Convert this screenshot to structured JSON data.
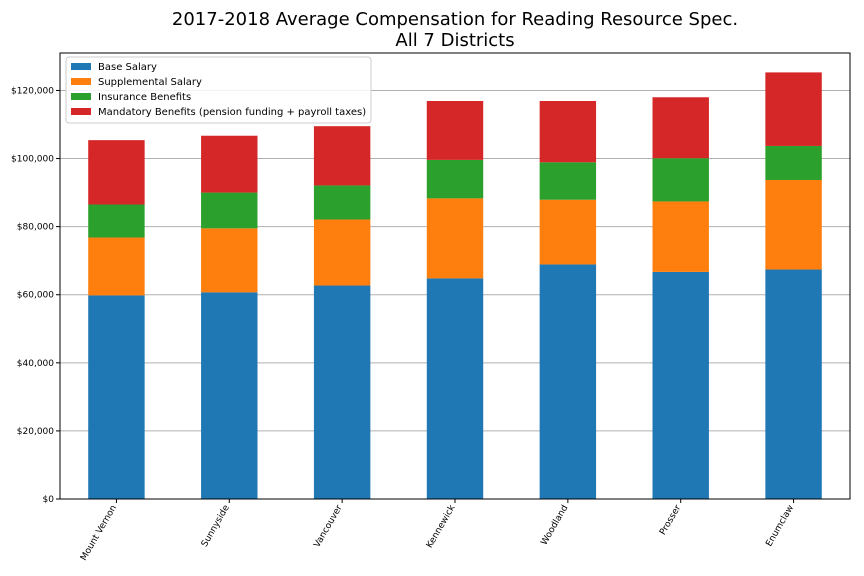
{
  "chart_data": {
    "type": "bar",
    "stacked": true,
    "title": "2017-2018 Average Compensation for Reading Resource Spec.",
    "subtitle": "All 7 Districts",
    "xlabel": "",
    "ylabel": "",
    "categories": [
      "Mount Vernon",
      "Sunnyside",
      "Vancouver",
      "Kennewick",
      "Woodland",
      "Prosser",
      "Enumclaw"
    ],
    "series": [
      {
        "name": "Base Salary",
        "color": "#1f77b4",
        "values": [
          59800,
          60700,
          62700,
          64800,
          68900,
          66700,
          67400
        ]
      },
      {
        "name": "Supplemental Salary",
        "color": "#ff7f0e",
        "values": [
          17000,
          18800,
          19400,
          23500,
          19000,
          20700,
          26300
        ]
      },
      {
        "name": "Insurance Benefits",
        "color": "#2ca02c",
        "values": [
          9700,
          10500,
          10000,
          11300,
          11000,
          12700,
          10000
        ]
      },
      {
        "name": "Mandatory Benefits (pension funding + payroll taxes)",
        "color": "#d62728",
        "values": [
          18900,
          16700,
          17400,
          17300,
          18000,
          17900,
          21600
        ]
      }
    ],
    "ylim": [
      0,
      131000
    ],
    "yticks": [
      0,
      20000,
      40000,
      60000,
      80000,
      100000,
      120000
    ],
    "ytick_labels": [
      "$0",
      "$20,000",
      "$40,000",
      "$60,000",
      "$80,000",
      "$100,000",
      "$120,000"
    ],
    "grid": "y",
    "legend_position": "top-left"
  }
}
